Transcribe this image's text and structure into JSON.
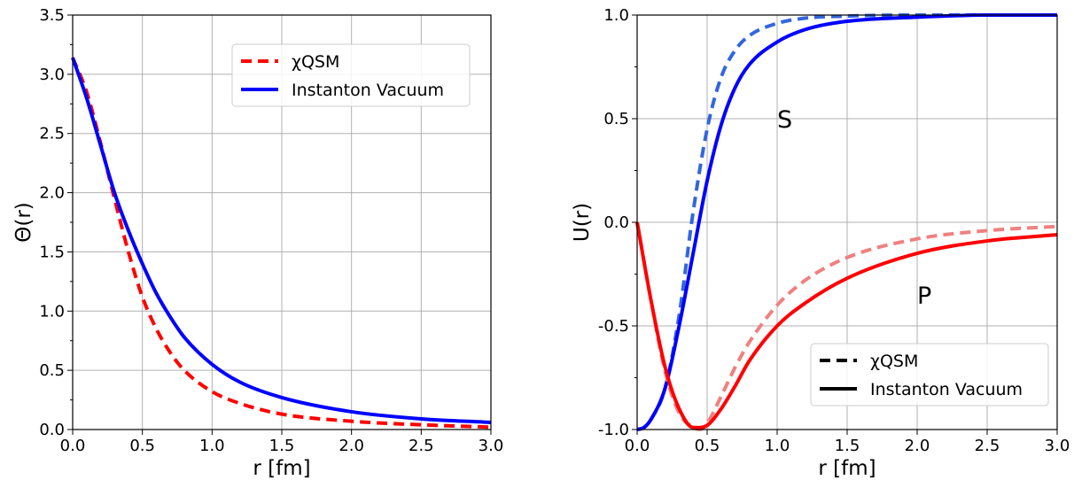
{
  "chart_data": [
    {
      "type": "line",
      "xlabel": "r [fm]",
      "ylabel": "Θ(r)",
      "xlim": [
        0,
        3.0
      ],
      "ylim": [
        0,
        3.5
      ],
      "grid": true,
      "legend_placement": "upper-right",
      "xticks": [
        "0.0",
        "0.5",
        "1.0",
        "1.5",
        "2.0",
        "2.5",
        "3.0"
      ],
      "yticks": [
        "0.0",
        "0.5",
        "1.0",
        "1.5",
        "2.0",
        "2.5",
        "3.0",
        "3.5"
      ],
      "legend": [
        {
          "label": "χQSM",
          "color": "#ff0000",
          "style": "dashed"
        },
        {
          "label": "Instanton Vacuum",
          "color": "#0000ff",
          "style": "solid"
        }
      ],
      "series": [
        {
          "name": "χQSM",
          "color": "#ff0000",
          "style": "dashed",
          "x": [
            0.0,
            0.1,
            0.2,
            0.3,
            0.4,
            0.5,
            0.6,
            0.7,
            0.8,
            1.0,
            1.2,
            1.5,
            2.0,
            2.5,
            3.0
          ],
          "y": [
            3.14,
            2.85,
            2.42,
            1.95,
            1.5,
            1.12,
            0.85,
            0.65,
            0.5,
            0.32,
            0.22,
            0.13,
            0.07,
            0.04,
            0.02
          ]
        },
        {
          "name": "Instanton Vacuum",
          "color": "#0000ff",
          "style": "solid",
          "x": [
            0.0,
            0.1,
            0.2,
            0.3,
            0.4,
            0.5,
            0.6,
            0.7,
            0.8,
            1.0,
            1.2,
            1.5,
            2.0,
            2.5,
            3.0
          ],
          "y": [
            3.14,
            2.8,
            2.4,
            2.0,
            1.68,
            1.4,
            1.15,
            0.95,
            0.78,
            0.55,
            0.4,
            0.27,
            0.15,
            0.09,
            0.06
          ]
        }
      ],
      "annotations": []
    },
    {
      "type": "line",
      "xlabel": "r [fm]",
      "ylabel": "U(r)",
      "xlim": [
        0,
        3.0
      ],
      "ylim": [
        -1.0,
        1.0
      ],
      "grid": true,
      "legend_placement": "lower-right",
      "xticks": [
        "0.0",
        "0.5",
        "1.0",
        "1.5",
        "2.0",
        "2.5",
        "3.0"
      ],
      "yticks": [
        "-1.0",
        "-0.5",
        "0.0",
        "0.5",
        "1.0"
      ],
      "legend": [
        {
          "label": "χQSM",
          "color": "#000000",
          "style": "dashed"
        },
        {
          "label": "Instanton Vacuum",
          "color": "#000000",
          "style": "solid"
        }
      ],
      "series": [
        {
          "name": "S χQSM",
          "color": "#3366dd",
          "style": "dashed",
          "x": [
            0.0,
            0.05,
            0.1,
            0.2,
            0.3,
            0.4,
            0.5,
            0.6,
            0.7,
            0.8,
            1.0,
            1.2,
            1.5,
            2.0,
            2.5,
            3.0
          ],
          "y": [
            -1.0,
            -0.99,
            -0.95,
            -0.8,
            -0.45,
            0.05,
            0.45,
            0.7,
            0.83,
            0.9,
            0.96,
            0.985,
            0.995,
            1.0,
            1.0,
            1.0
          ]
        },
        {
          "name": "S Instanton Vacuum",
          "color": "#0000ff",
          "style": "solid",
          "x": [
            0.0,
            0.05,
            0.1,
            0.2,
            0.3,
            0.4,
            0.5,
            0.6,
            0.7,
            0.8,
            1.0,
            1.2,
            1.5,
            2.0,
            2.5,
            3.0
          ],
          "y": [
            -1.0,
            -0.99,
            -0.95,
            -0.8,
            -0.5,
            -0.15,
            0.2,
            0.47,
            0.65,
            0.76,
            0.87,
            0.93,
            0.97,
            0.99,
            1.0,
            1.0
          ]
        },
        {
          "name": "P χQSM",
          "color": "#f08080",
          "style": "dashed",
          "x": [
            0.0,
            0.1,
            0.2,
            0.3,
            0.4,
            0.45,
            0.5,
            0.6,
            0.7,
            0.8,
            1.0,
            1.2,
            1.5,
            2.0,
            2.5,
            3.0
          ],
          "y": [
            0.0,
            -0.38,
            -0.72,
            -0.92,
            -0.99,
            -1.0,
            -0.97,
            -0.84,
            -0.7,
            -0.58,
            -0.4,
            -0.28,
            -0.17,
            -0.08,
            -0.04,
            -0.02
          ]
        },
        {
          "name": "P Instanton Vacuum",
          "color": "#ff0000",
          "style": "solid",
          "x": [
            0.0,
            0.1,
            0.2,
            0.3,
            0.4,
            0.5,
            0.6,
            0.7,
            0.8,
            1.0,
            1.2,
            1.5,
            2.0,
            2.5,
            3.0
          ],
          "y": [
            0.0,
            -0.38,
            -0.7,
            -0.9,
            -0.99,
            -0.98,
            -0.9,
            -0.79,
            -0.67,
            -0.5,
            -0.39,
            -0.27,
            -0.15,
            -0.09,
            -0.06
          ]
        }
      ],
      "annotations": [
        {
          "text": "S",
          "x": 1.0,
          "y": 0.5
        },
        {
          "text": "P",
          "x": 2.0,
          "y": -0.35
        }
      ]
    }
  ]
}
